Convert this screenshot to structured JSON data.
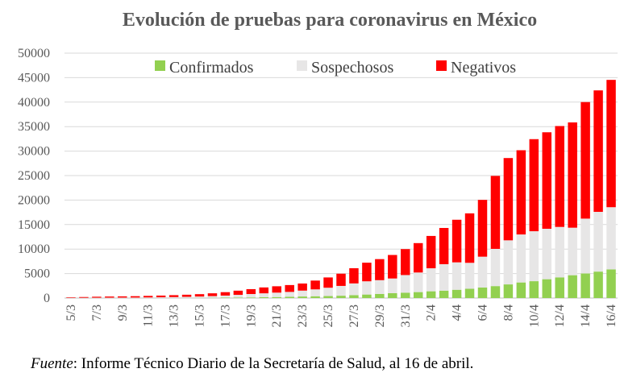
{
  "chart_data": {
    "type": "bar",
    "stacked": true,
    "title": "Evolución de pruebas para coronavirus en México",
    "xlabel": "",
    "ylabel": "",
    "ylim": [
      0,
      50000
    ],
    "yticks": [
      0,
      5000,
      10000,
      15000,
      20000,
      25000,
      30000,
      35000,
      40000,
      45000,
      50000
    ],
    "categories": [
      "5/3",
      "6/3",
      "7/3",
      "8/3",
      "9/3",
      "10/3",
      "11/3",
      "12/3",
      "13/3",
      "14/3",
      "15/3",
      "16/3",
      "17/3",
      "18/3",
      "19/3",
      "20/3",
      "21/3",
      "22/3",
      "23/3",
      "24/3",
      "25/3",
      "26/3",
      "27/3",
      "28/3",
      "29/3",
      "30/3",
      "31/3",
      "1/4",
      "2/4",
      "3/4",
      "4/4",
      "5/4",
      "6/4",
      "7/4",
      "8/4",
      "9/4",
      "10/4",
      "11/4",
      "12/4",
      "13/4",
      "14/4",
      "15/4",
      "16/4"
    ],
    "tick_labels": [
      "5/3",
      "7/3",
      "9/3",
      "11/3",
      "13/3",
      "15/3",
      "17/3",
      "19/3",
      "21/3",
      "23/3",
      "25/3",
      "27/3",
      "29/3",
      "31/3",
      "2/4",
      "4/4",
      "6/4",
      "8/4",
      "10/4",
      "12/4",
      "14/4",
      "16/4"
    ],
    "series": [
      {
        "name": "Confirmados",
        "color": "#92d050",
        "values": [
          5,
          7,
          7,
          7,
          7,
          7,
          11,
          12,
          16,
          26,
          41,
          53,
          82,
          93,
          118,
          164,
          203,
          251,
          316,
          367,
          405,
          475,
          585,
          717,
          848,
          993,
          1094,
          1215,
          1378,
          1510,
          1688,
          1890,
          2143,
          2439,
          2785,
          3181,
          3441,
          3844,
          4219,
          4661,
          5014,
          5399,
          5847
        ]
      },
      {
        "name": "Sospechosos",
        "color": "#e7e6e6",
        "values": [
          40,
          50,
          60,
          70,
          80,
          90,
          110,
          140,
          180,
          220,
          270,
          340,
          420,
          560,
          700,
          800,
          900,
          1000,
          1200,
          1400,
          1700,
          2000,
          2400,
          2700,
          2800,
          3000,
          3600,
          4000,
          4700,
          5400,
          5600,
          5300,
          6300,
          7600,
          9000,
          9800,
          10200,
          10300,
          10300,
          9700,
          11200,
          12200,
          12700
        ]
      },
      {
        "name": "Negativos",
        "color": "#ff0000",
        "values": [
          100,
          150,
          200,
          230,
          250,
          280,
          320,
          350,
          390,
          430,
          480,
          570,
          700,
          850,
          1000,
          1200,
          1300,
          1400,
          1450,
          1800,
          2100,
          2500,
          3100,
          3800,
          4300,
          4800,
          5300,
          6000,
          6600,
          7400,
          8700,
          10100,
          11600,
          14900,
          16800,
          17200,
          18800,
          19700,
          20600,
          21500,
          23800,
          24800,
          26000
        ]
      }
    ]
  },
  "source": {
    "label": "Fuente",
    "text": ": Informe Técnico Diario de la Secretaría de Salud, al 16 de abril."
  }
}
